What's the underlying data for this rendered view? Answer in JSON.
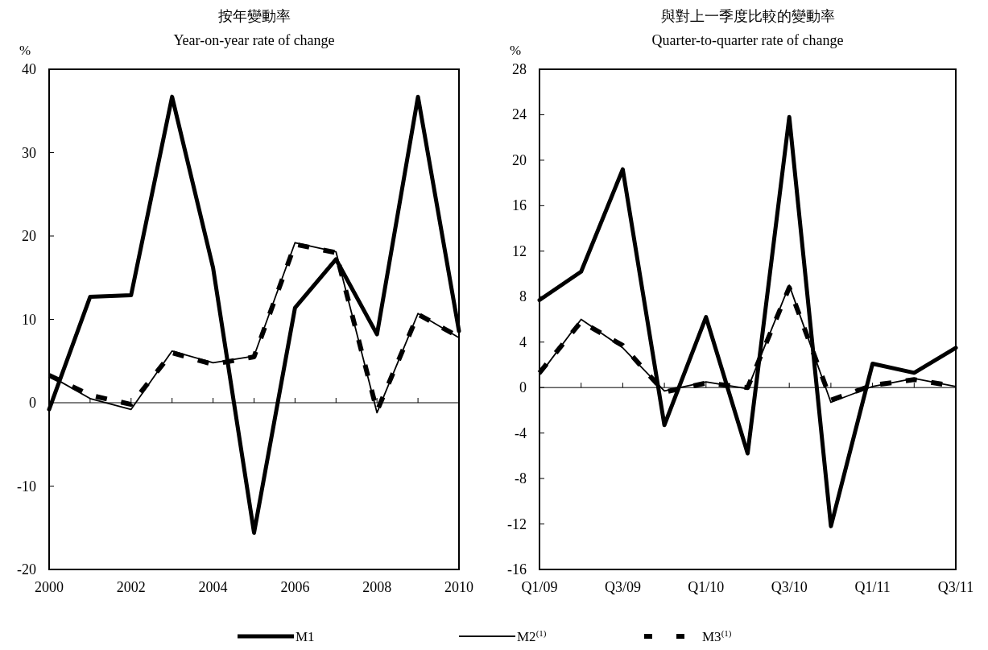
{
  "chart_data": [
    {
      "type": "line",
      "title": "按年變動率",
      "subtitle": "Year-on-year rate of change",
      "ylabel": "%",
      "x": [
        2000,
        2001,
        2002,
        2003,
        2004,
        2005,
        2006,
        2007,
        2008,
        2009,
        2010
      ],
      "xlim": [
        2000,
        2010
      ],
      "xticks": [
        2000,
        {
          "value": 2001,
          "label": null
        },
        2002,
        {
          "value": 2003,
          "label": null
        },
        2004,
        {
          "value": 2005,
          "label": null
        },
        2006,
        {
          "value": 2007,
          "label": null
        },
        2008,
        {
          "value": 2009,
          "label": null
        },
        2010
      ],
      "ylim": [
        -20,
        40
      ],
      "yticks": [
        -20,
        -10,
        0,
        10,
        20,
        30,
        40
      ],
      "legend": "bottom",
      "series": [
        {
          "name": "M1",
          "color": "#000000",
          "line_style": "solid",
          "values": [
            -0.8,
            12.7,
            12.9,
            36.7,
            16.2,
            -15.6,
            11.4,
            17.2,
            8.2,
            36.7,
            8.6
          ]
        },
        {
          "name": "M2$^{(1)}$",
          "color": "#000000",
          "line_style": "solid",
          "values": [
            3.3,
            0.5,
            -0.8,
            6.2,
            4.8,
            5.6,
            19.2,
            18.1,
            -1.2,
            10.7,
            7.8
          ]
        },
        {
          "name": "M3$^{(1)}$",
          "color": "#000000",
          "line_style": "dashed",
          "values": [
            3.3,
            0.9,
            -0.2,
            6.0,
            4.6,
            5.5,
            19.0,
            18.0,
            -1.0,
            10.6,
            7.9
          ]
        }
      ]
    },
    {
      "type": "line",
      "title": "與對上一季度比較的變動率",
      "subtitle": "Quarter-to-quarter rate of change",
      "ylabel": "%",
      "categories": [
        "Q1/09",
        null,
        "Q3/09",
        null,
        "Q1/10",
        null,
        "Q3/10",
        null,
        "Q1/11",
        null,
        "Q3/11"
      ],
      "ylim": [
        -16,
        28
      ],
      "yticks": [
        -16,
        -12,
        -8,
        -4,
        0,
        4,
        8,
        12,
        16,
        20,
        24,
        28
      ],
      "series": [
        {
          "color": "#000000",
          "line_style": "solid",
          "values": [
            7.7,
            10.2,
            19.2,
            -3.3,
            6.2,
            -5.8,
            23.8,
            -12.2,
            2.1,
            1.3,
            3.5
          ]
        },
        {
          "color": "#000000",
          "line_style": "solid",
          "values": [
            1.1,
            6.0,
            3.5,
            -0.3,
            0.5,
            -0.1,
            9.0,
            -1.3,
            0.1,
            0.8,
            0.1
          ]
        },
        {
          "color": "#000000",
          "line_style": "dashed",
          "values": [
            1.3,
            5.8,
            3.7,
            -0.4,
            0.4,
            0.0,
            8.8,
            -1.1,
            0.2,
            0.7,
            0.1
          ]
        }
      ]
    }
  ]
}
